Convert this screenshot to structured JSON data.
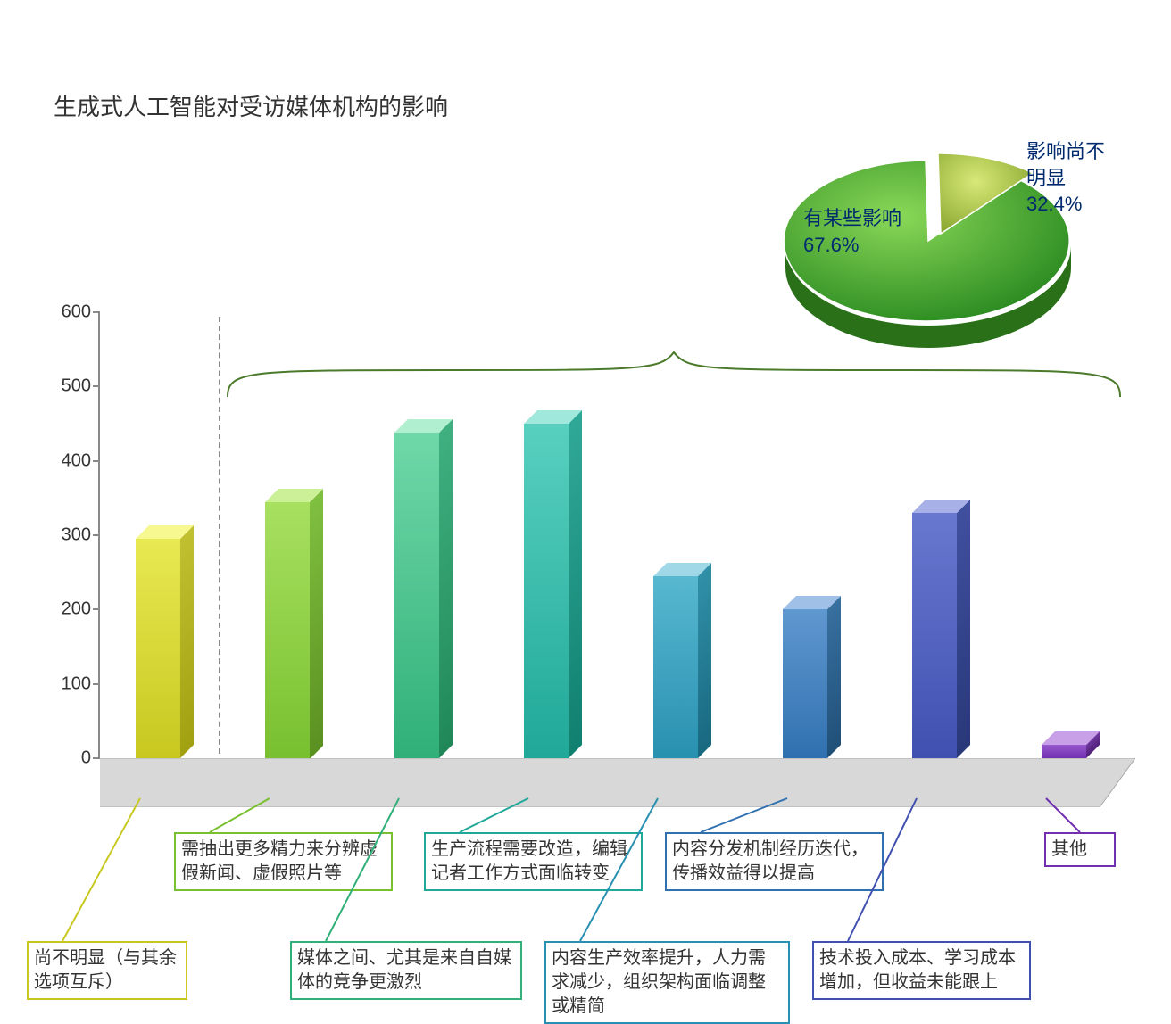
{
  "title": "生成式人工智能对受访媒体机构的影响",
  "bar_chart": {
    "type": "bar-3d",
    "ylim": [
      0,
      600
    ],
    "ytick_step": 100,
    "yticks": [
      0,
      100,
      200,
      300,
      400,
      500,
      600
    ],
    "axis_color": "#888888",
    "floor_fill": "#d8d8d8",
    "floor_stroke": "#aaaaaa",
    "divider_after_index": 0,
    "divider_color": "#888888",
    "bars": [
      {
        "label": "尚不明显（与其余选项互斥）",
        "value": 295,
        "front_top": "#e8e852",
        "front_bottom": "#c8c820",
        "side_top": "#c0c030",
        "side_bottom": "#a0a010",
        "top_color": "#f8f890",
        "label_border": "#c8c820",
        "label_row": "bottom"
      },
      {
        "label": "需抽出更多精力来分辨虚假新闻、虚假照片等",
        "value": 345,
        "front_top": "#a8e060",
        "front_bottom": "#78c030",
        "side_top": "#80c040",
        "side_bottom": "#5a9020",
        "top_color": "#ccf098",
        "label_border": "#78c030",
        "label_row": "top"
      },
      {
        "label": "媒体之间、尤其是来自自媒体的竞争更激烈",
        "value": 438,
        "front_top": "#70d8a8",
        "front_bottom": "#30b078",
        "side_top": "#40b080",
        "side_bottom": "#208858",
        "top_color": "#b0f0d0",
        "label_border": "#30b078",
        "label_row": "bottom"
      },
      {
        "label": "生产流程需要改造，编辑记者工作方式面临转变",
        "value": 450,
        "front_top": "#58d0c0",
        "front_bottom": "#20a898",
        "side_top": "#30a898",
        "side_bottom": "#108070",
        "top_color": "#a0e8dc",
        "label_border": "#20a898",
        "label_row": "top"
      },
      {
        "label": "内容生产效率提升，人力需求减少，组织架构面临调整或精简",
        "value": 245,
        "front_top": "#58b8d0",
        "front_bottom": "#2890b0",
        "side_top": "#3090a8",
        "side_bottom": "#186880",
        "top_color": "#a0d8e8",
        "label_border": "#2890b0",
        "label_row": "bottom"
      },
      {
        "label": "内容分发机制经历迭代，传播效益得以提高",
        "value": 200,
        "front_top": "#6098d0",
        "front_bottom": "#3070b0",
        "side_top": "#3870a0",
        "side_bottom": "#205078",
        "top_color": "#a0c0e8",
        "label_border": "#3070b0",
        "label_row": "top"
      },
      {
        "label": "技术投入成本、学习成本增加，但收益未能跟上",
        "value": 330,
        "front_top": "#6878d0",
        "front_bottom": "#4050b0",
        "side_top": "#4050a0",
        "side_bottom": "#283878",
        "top_color": "#a8b0e8",
        "label_border": "#4050b0",
        "label_row": "bottom"
      },
      {
        "label": "其他",
        "value": 18,
        "front_top": "#9858d0",
        "front_bottom": "#7030b0",
        "side_top": "#7038a0",
        "side_bottom": "#502078",
        "top_color": "#c8a0e8",
        "label_border": "#7030b0",
        "label_row": "top"
      }
    ]
  },
  "pie_chart": {
    "type": "pie-3d",
    "slices": [
      {
        "label": "有某些影响",
        "pct": "67.6%",
        "value": 67.6,
        "color_light": "#6bbf3a",
        "color_dark": "#2a8a20"
      },
      {
        "label": "影响尚不明显",
        "pct": "32.4%",
        "value": 32.4,
        "color_light": "#c8d860",
        "color_dark": "#8aa830"
      }
    ],
    "label_color": "#002a6e",
    "side_color": "#2a7018"
  },
  "brace": {
    "color": "#4a7a2a"
  }
}
